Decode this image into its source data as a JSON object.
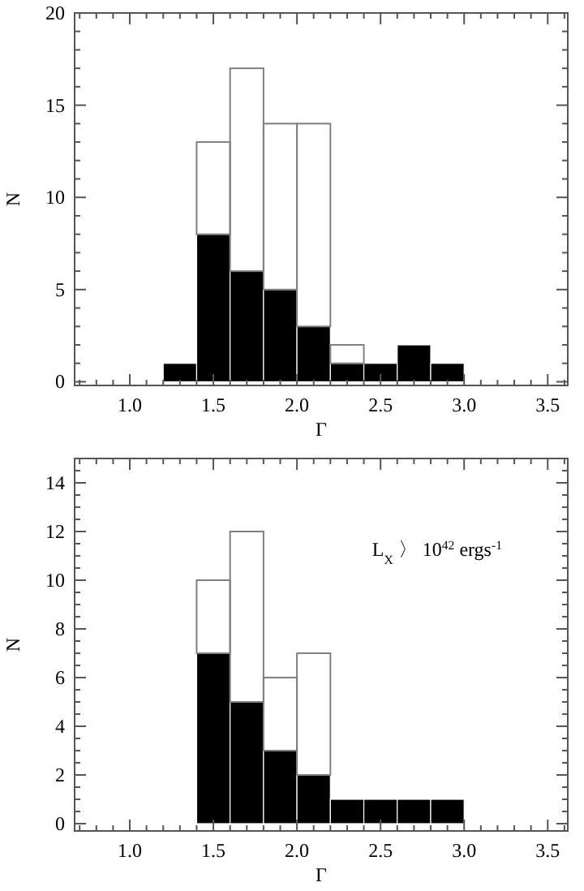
{
  "chart_data": [
    {
      "type": "bar",
      "xlabel": "Γ",
      "ylabel": "N",
      "stacked": true,
      "x": [
        1.3,
        1.5,
        1.7,
        1.9,
        2.1,
        2.3,
        2.5,
        2.7,
        2.9
      ],
      "series": [
        {
          "color": "#000000",
          "values": [
            1,
            8,
            6,
            5,
            3,
            1,
            1,
            2,
            1
          ]
        },
        {
          "color": "#808080",
          "values": [
            0,
            5,
            11,
            9,
            11,
            1,
            0,
            0,
            0
          ]
        }
      ],
      "xlim": [
        0.67,
        3.62
      ],
      "xticks": [
        {
          "value": 0.7,
          "label": null
        },
        {
          "value": 0.8,
          "label": null
        },
        {
          "value": 0.9,
          "label": null
        },
        {
          "value": 1,
          "label": "1.0"
        },
        {
          "value": 1.1,
          "label": null
        },
        {
          "value": 1.2,
          "label": null
        },
        {
          "value": 1.3,
          "label": null
        },
        {
          "value": 1.4,
          "label": null
        },
        {
          "value": 1.5,
          "label": "1.5"
        },
        {
          "value": 1.6,
          "label": null
        },
        {
          "value": 1.7,
          "label": null
        },
        {
          "value": 1.8,
          "label": null
        },
        {
          "value": 1.9,
          "label": null
        },
        {
          "value": 2,
          "label": "2.0"
        },
        {
          "value": 2.1,
          "label": null
        },
        {
          "value": 2.2,
          "label": null
        },
        {
          "value": 2.3,
          "label": null
        },
        {
          "value": 2.4,
          "label": null
        },
        {
          "value": 2.5,
          "label": "2.5"
        },
        {
          "value": 2.6,
          "label": null
        },
        {
          "value": 2.7,
          "label": null
        },
        {
          "value": 2.8,
          "label": null
        },
        {
          "value": 2.9,
          "label": null
        },
        {
          "value": 3,
          "label": "3.0"
        },
        {
          "value": 3.1,
          "label": null
        },
        {
          "value": 3.2,
          "label": null
        },
        {
          "value": 3.3,
          "label": null
        },
        {
          "value": 3.4,
          "label": null
        },
        {
          "value": 3.5,
          "label": "3.5"
        },
        {
          "value": 3.6,
          "label": null
        }
      ],
      "ylim": [
        -0.2,
        20
      ],
      "yticks": [
        0,
        {
          "value": 1,
          "label": null
        },
        {
          "value": 2,
          "label": null
        },
        {
          "value": 3,
          "label": null
        },
        {
          "value": 4,
          "label": null
        },
        5,
        {
          "value": 6,
          "label": null
        },
        {
          "value": 7,
          "label": null
        },
        {
          "value": 8,
          "label": null
        },
        {
          "value": 9,
          "label": null
        },
        10,
        {
          "value": 11,
          "label": null
        },
        {
          "value": 12,
          "label": null
        },
        {
          "value": 13,
          "label": null
        },
        {
          "value": 14,
          "label": null
        },
        15,
        {
          "value": 16,
          "label": null
        },
        {
          "value": 17,
          "label": null
        },
        {
          "value": 18,
          "label": null
        },
        {
          "value": 19,
          "label": null
        },
        20
      ],
      "grid": false
    },
    {
      "type": "bar",
      "xlabel": "Γ",
      "ylabel": "N",
      "stacked": true,
      "annotations": [
        "L$_{X}$ 〉 10$^{42}$ ergs$^{-1}$"
      ],
      "x": [
        1.5,
        1.7,
        1.9,
        2.1,
        2.3,
        2.5,
        2.7,
        2.9
      ],
      "series": [
        {
          "color": "#000000",
          "values": [
            7,
            5,
            3,
            2,
            1,
            1,
            1,
            1
          ]
        },
        {
          "color": "#808080",
          "values": [
            3,
            7,
            3,
            5,
            0,
            0,
            0,
            0
          ]
        }
      ],
      "xlim": [
        0.67,
        3.62
      ],
      "xticks": [
        {
          "value": 0.7,
          "label": null
        },
        {
          "value": 0.8,
          "label": null
        },
        {
          "value": 0.9,
          "label": null
        },
        {
          "value": 1,
          "label": "1.0"
        },
        {
          "value": 1.1,
          "label": null
        },
        {
          "value": 1.2,
          "label": null
        },
        {
          "value": 1.3,
          "label": null
        },
        {
          "value": 1.4,
          "label": null
        },
        {
          "value": 1.5,
          "label": "1.5"
        },
        {
          "value": 1.6,
          "label": null
        },
        {
          "value": 1.7,
          "label": null
        },
        {
          "value": 1.8,
          "label": null
        },
        {
          "value": 1.9,
          "label": null
        },
        {
          "value": 2,
          "label": "2.0"
        },
        {
          "value": 2.1,
          "label": null
        },
        {
          "value": 2.2,
          "label": null
        },
        {
          "value": 2.3,
          "label": null
        },
        {
          "value": 2.4,
          "label": null
        },
        {
          "value": 2.5,
          "label": "2.5"
        },
        {
          "value": 2.6,
          "label": null
        },
        {
          "value": 2.7,
          "label": null
        },
        {
          "value": 2.8,
          "label": null
        },
        {
          "value": 2.9,
          "label": null
        },
        {
          "value": 3,
          "label": "3.0"
        },
        {
          "value": 3.1,
          "label": null
        },
        {
          "value": 3.2,
          "label": null
        },
        {
          "value": 3.3,
          "label": null
        },
        {
          "value": 3.4,
          "label": null
        },
        {
          "value": 3.5,
          "label": "3.5"
        },
        {
          "value": 3.6,
          "label": null
        }
      ],
      "ylim": [
        -0.3,
        15
      ],
      "yticks": [
        0,
        {
          "value": 0.5,
          "label": null
        },
        {
          "value": 1,
          "label": null
        },
        {
          "value": 1.5,
          "label": null
        },
        2,
        {
          "value": 2.5,
          "label": null
        },
        {
          "value": 3,
          "label": null
        },
        {
          "value": 3.5,
          "label": null
        },
        4,
        {
          "value": 4.5,
          "label": null
        },
        {
          "value": 5,
          "label": null
        },
        {
          "value": 5.5,
          "label": null
        },
        6,
        {
          "value": 6.5,
          "label": null
        },
        {
          "value": 7,
          "label": null
        },
        {
          "value": 7.5,
          "label": null
        },
        8,
        {
          "value": 8.5,
          "label": null
        },
        {
          "value": 9,
          "label": null
        },
        {
          "value": 9.5,
          "label": null
        },
        10,
        {
          "value": 10.5,
          "label": null
        },
        {
          "value": 11,
          "label": null
        },
        {
          "value": 11.5,
          "label": null
        },
        12,
        {
          "value": 12.5,
          "label": null
        },
        {
          "value": 13,
          "label": null
        },
        {
          "value": 13.5,
          "label": null
        },
        14,
        {
          "value": 14.5,
          "label": null
        }
      ],
      "grid": false
    }
  ]
}
